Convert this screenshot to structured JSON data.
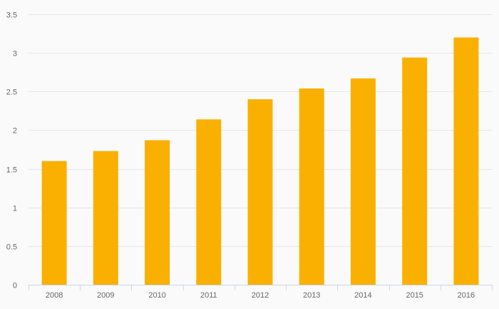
{
  "chart_data": {
    "type": "bar",
    "categories": [
      "2008",
      "2009",
      "2010",
      "2011",
      "2012",
      "2013",
      "2014",
      "2015",
      "2016"
    ],
    "series": [
      {
        "values": [
          1.6,
          1.73,
          1.87,
          2.14,
          2.4,
          2.54,
          2.67,
          2.94,
          3.2
        ]
      }
    ],
    "y_ticks": [
      "0",
      "0.5",
      "1",
      "1.5",
      "2",
      "2.5",
      "3",
      "3.5"
    ],
    "ylim": [
      0,
      3.5
    ],
    "title": "",
    "xlabel": "",
    "ylabel": "",
    "grid": true,
    "legend": "none",
    "colors": {
      "bar": "#f9b000",
      "background": "#fafafa",
      "grid": "#e6e6e6",
      "axis": "#ccd6eb",
      "label": "#666666"
    }
  }
}
